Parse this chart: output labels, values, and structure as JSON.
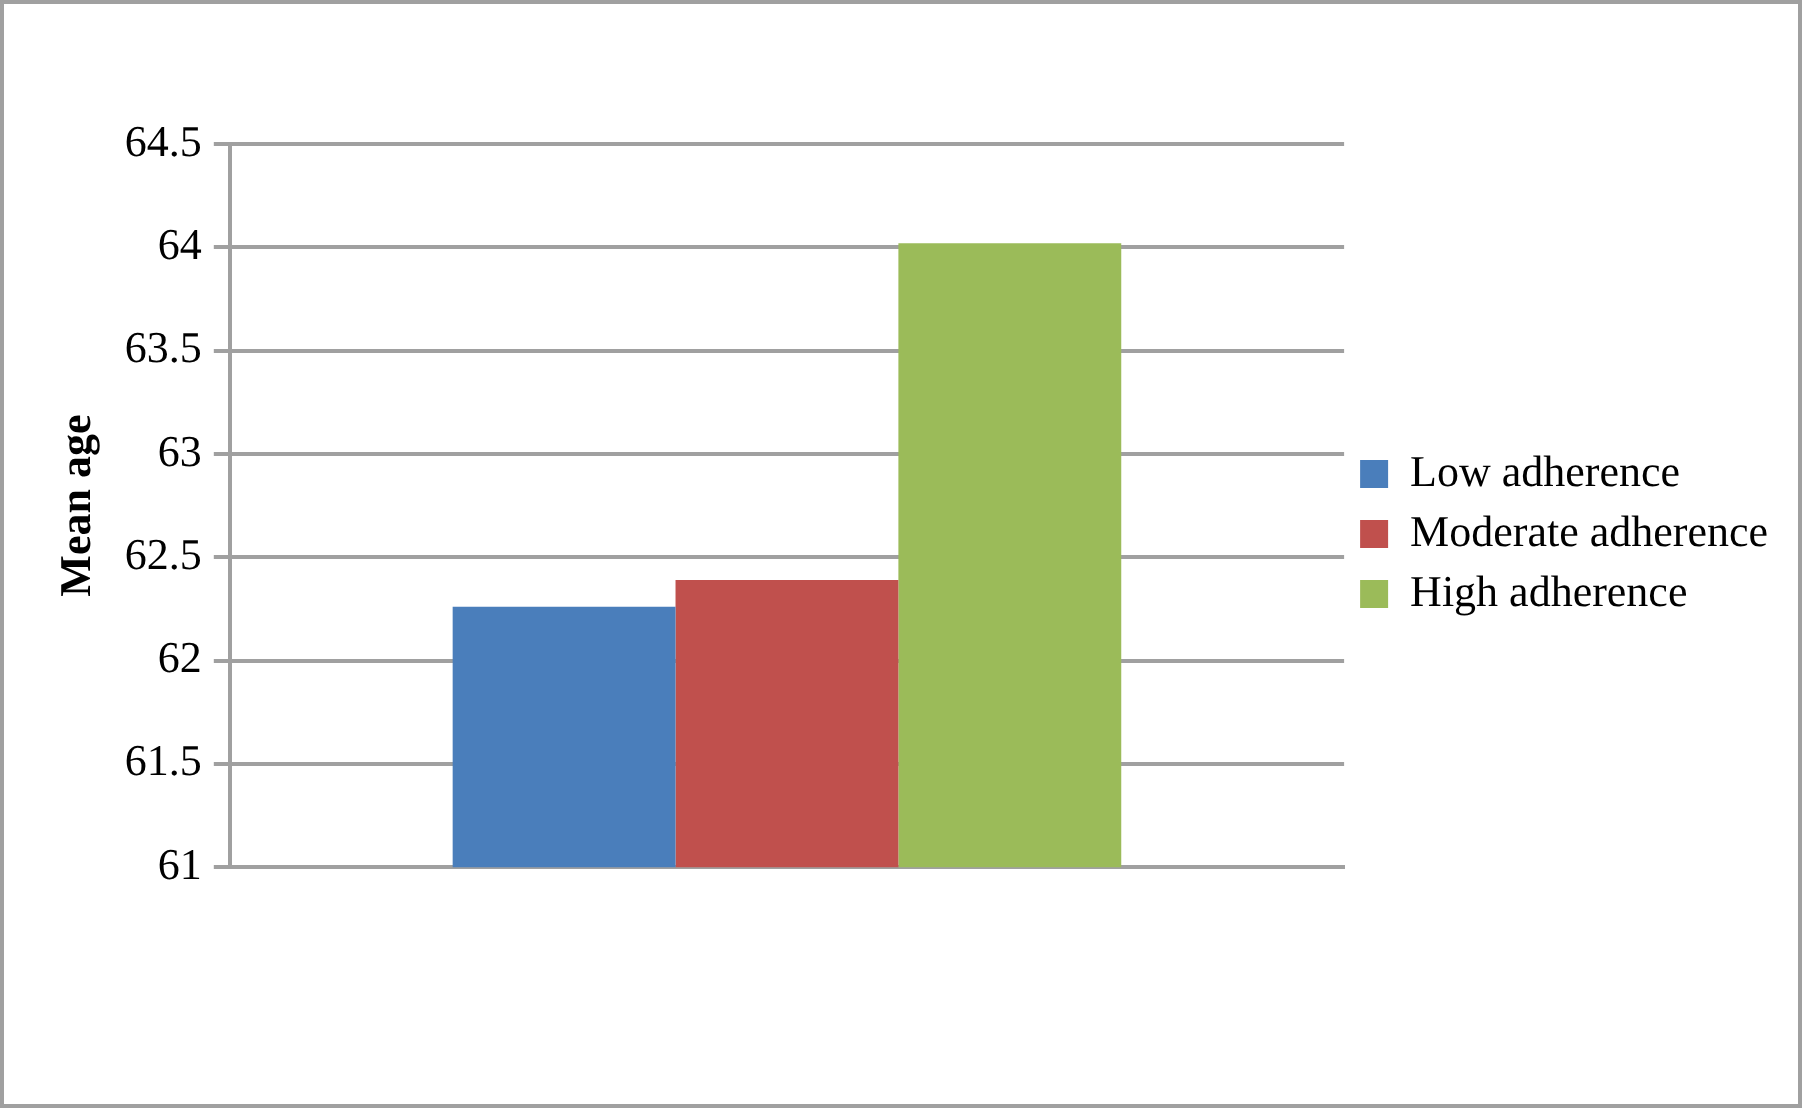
{
  "chart_data": {
    "type": "bar",
    "ylabel": "Mean age",
    "categories": [
      null
    ],
    "series": [
      {
        "name": "Low adherence",
        "color": "#4a7ebb",
        "values": [
          62.26
        ]
      },
      {
        "name": "Moderate adherence",
        "color": "#c0504d",
        "values": [
          62.39
        ]
      },
      {
        "name": "High adherence",
        "color": "#9bbb59",
        "values": [
          64.02
        ]
      }
    ],
    "ylim": [
      61,
      64.5
    ],
    "yticks": [
      61,
      61.5,
      62,
      62.5,
      63,
      63.5,
      64,
      64.5
    ],
    "grid": "y",
    "legend": "right"
  }
}
